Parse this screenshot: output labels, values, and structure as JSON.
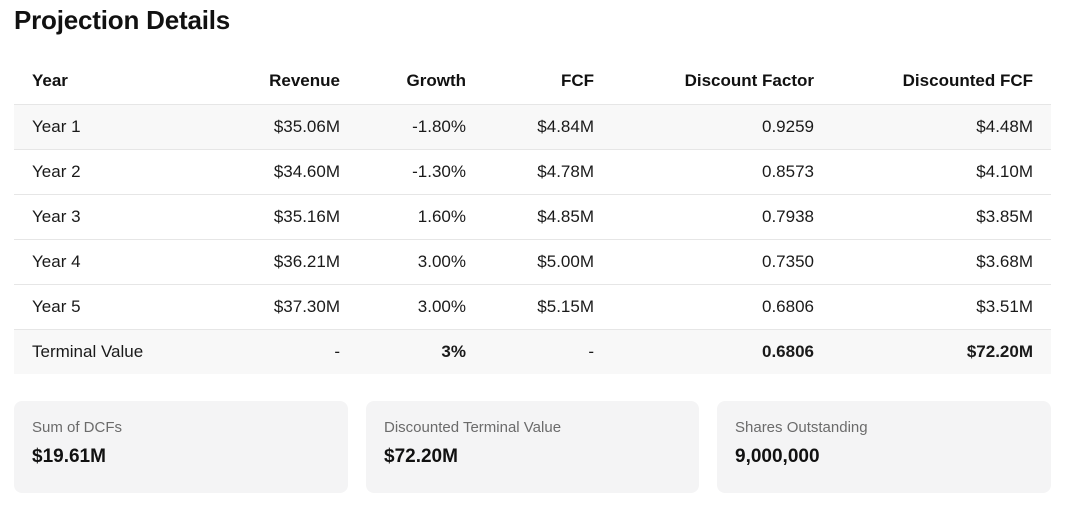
{
  "title": "Projection Details",
  "table": {
    "headers": [
      "Year",
      "Revenue",
      "Growth",
      "FCF",
      "Discount Factor",
      "Discounted FCF"
    ],
    "rows": [
      [
        "Year 1",
        "$35.06M",
        "-1.80%",
        "$4.84M",
        "0.9259",
        "$4.48M"
      ],
      [
        "Year 2",
        "$34.60M",
        "-1.30%",
        "$4.78M",
        "0.8573",
        "$4.10M"
      ],
      [
        "Year 3",
        "$35.16M",
        "1.60%",
        "$4.85M",
        "0.7938",
        "$3.85M"
      ],
      [
        "Year 4",
        "$36.21M",
        "3.00%",
        "$5.00M",
        "0.7350",
        "$3.68M"
      ],
      [
        "Year 5",
        "$37.30M",
        "3.00%",
        "$5.15M",
        "0.6806",
        "$3.51M"
      ]
    ],
    "terminal": [
      "Terminal Value",
      "-",
      "3%",
      "-",
      "0.6806",
      "$72.20M"
    ]
  },
  "cards": [
    {
      "label": "Sum of DCFs",
      "value": "$19.61M"
    },
    {
      "label": "Discounted Terminal Value",
      "value": "$72.20M"
    },
    {
      "label": "Shares Outstanding",
      "value": "9,000,000"
    }
  ]
}
